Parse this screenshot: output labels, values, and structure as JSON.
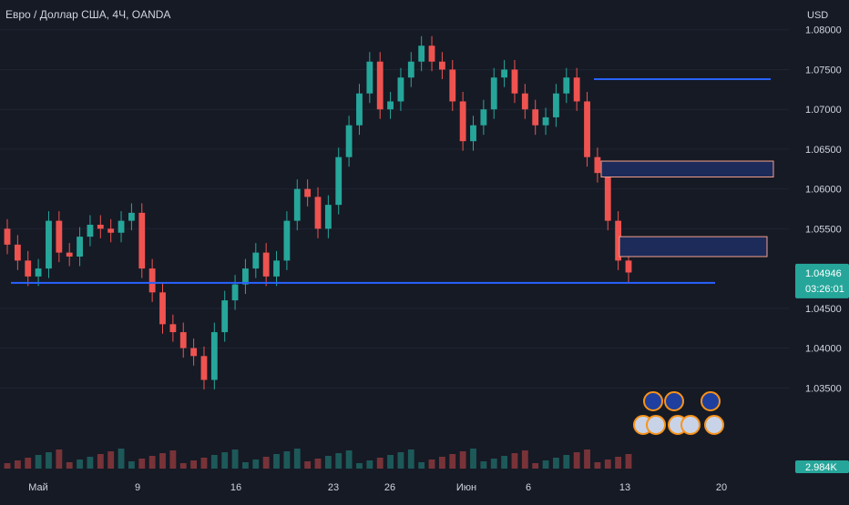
{
  "symbol_title": "Евро / Доллар США, 4Ч, OANDA",
  "colors": {
    "background": "#161a25",
    "up": "#26a69a",
    "down": "#ef5350",
    "level_line": "#2962ff",
    "zone_fill": "#1c2b5a",
    "zone_border": "#f7a08a",
    "text": "#d1d4dc",
    "grid": "#1f2433"
  },
  "chart_data": {
    "type": "candlestick",
    "currency_label": "USD",
    "y_ticks": [
      "1.08000",
      "1.07500",
      "1.07000",
      "1.06500",
      "1.06000",
      "1.05500",
      "1.04500",
      "1.04000",
      "1.03500"
    ],
    "ylim": [
      1.03,
      1.081
    ],
    "last_price": "1.04946",
    "countdown": "03:26:01",
    "volume_label": "2.984K",
    "x_labels": [
      "Май",
      "9",
      "16",
      "23",
      "26",
      "Июн",
      "6",
      "13",
      "20"
    ],
    "series": [
      {
        "name": "close",
        "values": [
          1.053,
          1.051,
          1.049,
          1.05,
          1.056,
          1.052,
          1.0515,
          1.054,
          1.0555,
          1.055,
          1.0545,
          1.056,
          1.057,
          1.05,
          1.047,
          1.043,
          1.042,
          1.04,
          1.039,
          1.036,
          1.042,
          1.046,
          1.048,
          1.05,
          1.052,
          1.049,
          1.051,
          1.056,
          1.06,
          1.059,
          1.055,
          1.058,
          1.064,
          1.068,
          1.072,
          1.076,
          1.07,
          1.071,
          1.074,
          1.076,
          1.078,
          1.076,
          1.075,
          1.071,
          1.066,
          1.068,
          1.07,
          1.074,
          1.075,
          1.072,
          1.07,
          1.068,
          1.069,
          1.072,
          1.074,
          1.071,
          1.064,
          1.062,
          1.056,
          1.051,
          1.0495
        ]
      }
    ],
    "levels": [
      1.0738,
      1.0482
    ],
    "zones": [
      {
        "from": 1.0615,
        "to": 1.0635
      },
      {
        "from": 1.0515,
        "to": 1.054
      }
    ]
  }
}
